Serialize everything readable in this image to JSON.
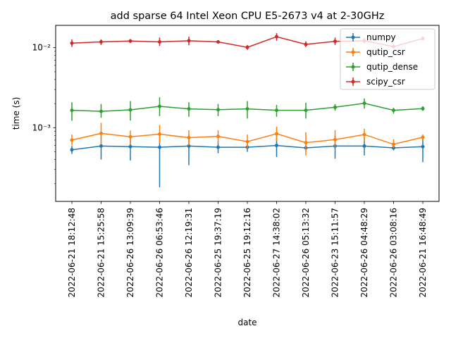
{
  "chart_data": {
    "type": "line",
    "title": "add sparse 64 Intel Xeon CPU E5-2673 v4 at 2-30GHz",
    "xlabel": "date",
    "ylabel": "time (s)",
    "yscale": "log",
    "ylim": [
      0.00012,
      0.019
    ],
    "y_ticks": [
      {
        "value": 0.001,
        "label": "10⁻³"
      },
      {
        "value": 0.01,
        "label": "10⁻²"
      }
    ],
    "grid": false,
    "legend_position": "top-right",
    "categories": [
      "2022-06-21 18:12:48",
      "2022-06-21 15:25:58",
      "2022-06-26 13:09:39",
      "2022-06-26 06:53:46",
      "2022-06-26 12:19:31",
      "2022-06-25 19:37:19",
      "2022-06-25 19:12:16",
      "2022-06-27 14:38:02",
      "2022-06-26 05:13:32",
      "2022-06-23 15:11:57",
      "2022-06-26 04:48:29",
      "2022-06-26 03:08:16",
      "2022-06-21 16:48:49"
    ],
    "series": [
      {
        "name": "numpy",
        "color": "#1f77b4",
        "values": [
          0.00053,
          0.00059,
          0.00058,
          0.00057,
          0.00059,
          0.00057,
          0.00057,
          0.0006,
          0.00056,
          0.00059,
          0.00059,
          0.00056,
          0.00058
        ],
        "err_low": [
          0.00047,
          0.0004,
          0.00039,
          0.00018,
          0.00034,
          0.00048,
          0.0005,
          0.00043,
          0.00051,
          0.00041,
          0.00045,
          0.00052,
          0.00037
        ],
        "err_high": [
          0.00059,
          0.0008,
          0.00078,
          0.0008,
          0.00082,
          0.00068,
          0.00068,
          0.0008,
          0.00063,
          0.0008,
          0.00076,
          0.00061,
          0.0008
        ]
      },
      {
        "name": "qutip_csr",
        "color": "#ff7f0e",
        "values": [
          0.0007,
          0.00085,
          0.00077,
          0.00083,
          0.00075,
          0.00078,
          0.00067,
          0.00084,
          0.00065,
          0.00071,
          0.00082,
          0.00062,
          0.00076
        ],
        "err_low": [
          0.0006,
          0.00062,
          0.00062,
          0.00064,
          0.0006,
          0.00063,
          0.00055,
          0.00068,
          0.00045,
          0.00057,
          0.00067,
          0.00056,
          0.0007
        ],
        "err_high": [
          0.00082,
          0.00115,
          0.00092,
          0.00108,
          0.00093,
          0.00093,
          0.00082,
          0.00103,
          0.00088,
          0.00093,
          0.00097,
          0.00072,
          0.00082
        ]
      },
      {
        "name": "qutip_dense",
        "color": "#2ca02c",
        "values": [
          0.00165,
          0.0016,
          0.00167,
          0.00185,
          0.00172,
          0.00168,
          0.00172,
          0.00165,
          0.00165,
          0.0018,
          0.00202,
          0.00165,
          0.00173
        ],
        "err_low": [
          0.00122,
          0.00133,
          0.00123,
          0.0014,
          0.00137,
          0.0014,
          0.0013,
          0.00137,
          0.0013,
          0.00163,
          0.00173,
          0.0015,
          0.00162
        ],
        "err_high": [
          0.00208,
          0.00198,
          0.00215,
          0.0024,
          0.00208,
          0.00198,
          0.00215,
          0.00193,
          0.00205,
          0.00197,
          0.00232,
          0.00177,
          0.00185
        ]
      },
      {
        "name": "scipy_csr",
        "color": "#d62728",
        "values": [
          0.0114,
          0.0118,
          0.0121,
          0.0118,
          0.0122,
          0.0118,
          0.0101,
          0.0137,
          0.011,
          0.012,
          0.0122,
          0.0103,
          0.013
        ],
        "err_low": [
          0.0102,
          0.0108,
          0.0114,
          0.0105,
          0.0107,
          0.0112,
          0.0094,
          0.0122,
          0.0102,
          0.0108,
          0.0113,
          0.0098,
          0.0124
        ],
        "err_high": [
          0.0127,
          0.0127,
          0.0128,
          0.0134,
          0.0137,
          0.0123,
          0.0108,
          0.0152,
          0.012,
          0.0134,
          0.0132,
          0.0108,
          0.0138
        ]
      }
    ]
  }
}
